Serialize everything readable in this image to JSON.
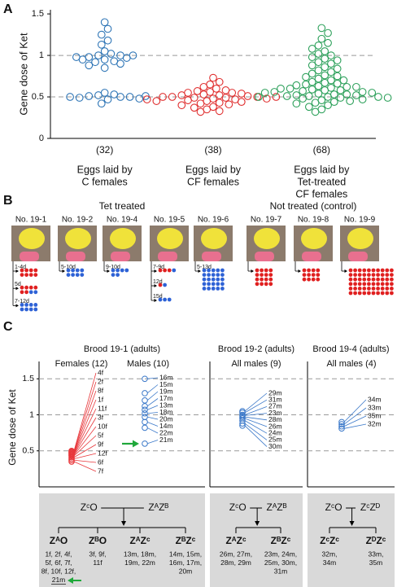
{
  "panel_labels": [
    "A",
    "B",
    "C"
  ],
  "chart_data": [
    {
      "type": "strip",
      "ylabel": "Gene dose of Ket",
      "ylim": [
        0,
        1.55
      ],
      "yticks": [
        0,
        0.5,
        1,
        1.5
      ],
      "dashed_lines": [
        0.5,
        1
      ],
      "categories": [
        [
          "Eggs laid by",
          "C females"
        ],
        [
          "Eggs laid by",
          "CF females"
        ],
        [
          "Eggs laid by",
          "Tet-treated",
          "CF females"
        ]
      ],
      "counts": [
        "(32)",
        "(38)",
        "(68)"
      ],
      "series": [
        {
          "color": "#2e75b6",
          "values": [
            1.4,
            1.32,
            1.25,
            1.18,
            1.13,
            1.05,
            1.02,
            1.0,
            1.0,
            0.98,
            0.97,
            0.95,
            0.93,
            0.92,
            0.9,
            0.88,
            0.85,
            0.95,
            0.98,
            1.0,
            0.55,
            0.53,
            0.52,
            0.51,
            0.5,
            0.5,
            0.49,
            0.48,
            0.47,
            0.5,
            0.51,
            0.42
          ]
        },
        {
          "color": "#e03030",
          "values": [
            0.73,
            0.68,
            0.65,
            0.62,
            0.6,
            0.58,
            0.57,
            0.56,
            0.55,
            0.55,
            0.54,
            0.53,
            0.52,
            0.52,
            0.51,
            0.5,
            0.5,
            0.5,
            0.49,
            0.49,
            0.48,
            0.48,
            0.47,
            0.46,
            0.45,
            0.45,
            0.44,
            0.43,
            0.42,
            0.41,
            0.4,
            0.38,
            0.37,
            0.35,
            0.33,
            0.32,
            0.5,
            0.47
          ]
        },
        {
          "color": "#2ca05a",
          "values": [
            1.33,
            1.27,
            1.2,
            1.15,
            1.12,
            1.08,
            1.05,
            1.02,
            1.0,
            0.98,
            0.96,
            0.94,
            0.92,
            0.9,
            0.88,
            0.86,
            0.84,
            0.82,
            0.8,
            0.78,
            0.76,
            0.75,
            0.74,
            0.72,
            0.7,
            0.7,
            0.68,
            0.67,
            0.66,
            0.65,
            0.64,
            0.63,
            0.62,
            0.62,
            0.61,
            0.6,
            0.6,
            0.59,
            0.58,
            0.58,
            0.57,
            0.56,
            0.56,
            0.55,
            0.55,
            0.54,
            0.53,
            0.53,
            0.52,
            0.52,
            0.51,
            0.51,
            0.5,
            0.5,
            0.5,
            0.49,
            0.49,
            0.48,
            0.47,
            0.46,
            0.45,
            0.44,
            0.43,
            0.42,
            0.4,
            0.38,
            0.35,
            0.32
          ]
        }
      ]
    },
    {
      "type": "labeled_strip",
      "title": "Brood 19-1 (adults)",
      "ylabel": "Gene dose of Ket",
      "ylim": [
        0,
        1.65
      ],
      "yticks": [
        0.5,
        1,
        1.5
      ],
      "dashed_lines": [
        0.5,
        1,
        1.5
      ],
      "series": [
        {
          "name": "Females (12)",
          "color": "#e8363a",
          "labels": [
            "4f",
            "2f",
            "8f",
            "1f",
            "11f",
            "3f",
            "10f",
            "5f",
            "9f",
            "12f",
            "6f",
            "7f"
          ],
          "values": [
            0.5,
            0.49,
            0.48,
            0.47,
            0.46,
            0.45,
            0.44,
            0.43,
            0.41,
            0.39,
            0.37,
            0.35
          ]
        },
        {
          "name": "Males (10)",
          "color": "#3a78c9",
          "labels": [
            "16m",
            "15m",
            "19m",
            "17m",
            "13m",
            "18m",
            "20m",
            "14m",
            "22m",
            "21m"
          ],
          "values": [
            1.5,
            1.3,
            1.2,
            1.12,
            1.07,
            1.02,
            0.97,
            0.9,
            0.82,
            0.6
          ]
        }
      ]
    },
    {
      "type": "labeled_strip",
      "title": "Brood 19-2 (adults)",
      "ylim": [
        0,
        1.65
      ],
      "dashed_lines": [
        0.5,
        1,
        1.5
      ],
      "series": [
        {
          "name": "All males (9)",
          "color": "#3a78c9",
          "labels": [
            "29m",
            "31m",
            "27m",
            "23m",
            "28m",
            "26m",
            "24m",
            "25m",
            "30m"
          ],
          "values": [
            1.05,
            1.03,
            1.0,
            0.99,
            0.97,
            0.95,
            0.92,
            0.88,
            0.85
          ]
        }
      ]
    },
    {
      "type": "labeled_strip",
      "title": "Brood 19-4 (adults)",
      "ylim": [
        0,
        1.65
      ],
      "dashed_lines": [
        0.5,
        1,
        1.5
      ],
      "series": [
        {
          "name": "All males (4)",
          "color": "#3a78c9",
          "labels": [
            "34m",
            "33m",
            "35m",
            "32m"
          ],
          "values": [
            0.9,
            0.87,
            0.84,
            0.81
          ]
        }
      ]
    }
  ],
  "panel_b": {
    "groups": [
      {
        "title": "Tet treated",
        "individuals": [
          {
            "name": "No. 19-1",
            "clutches": [
              {
                "label": "1-4d",
                "red": 8,
                "blue": 0
              },
              {
                "label": "5d",
                "red": 6,
                "blue": 2
              },
              {
                "label": "7-12d",
                "red": 0,
                "blue": 8
              }
            ]
          },
          {
            "name": "No. 19-2",
            "clutches": [
              {
                "label": "5-10d",
                "red": 0,
                "blue": 8
              }
            ]
          },
          {
            "name": "No. 19-4",
            "clutches": [
              {
                "label": "9-10d",
                "red": 0,
                "blue": 6
              }
            ]
          },
          {
            "name": "No. 19-5",
            "clutches": [
              {
                "label": "7-9d",
                "red": 3,
                "blue": 1
              },
              {
                "label": "12d",
                "red": 1,
                "blue": 1
              },
              {
                "label": "15d",
                "red": 0,
                "blue": 3
              }
            ]
          },
          {
            "name": "No. 19-6",
            "clutches": [
              {
                "label": "5-13d",
                "red": 0,
                "blue": 25
              }
            ]
          }
        ]
      },
      {
        "title": "Not treated (control)",
        "individuals": [
          {
            "name": "No. 19-7",
            "clutches": [
              {
                "label": null,
                "red": 16,
                "blue": 0
              }
            ]
          },
          {
            "name": "No. 19-8",
            "clutches": [
              {
                "label": null,
                "red": 12,
                "blue": 0
              }
            ]
          },
          {
            "name": "No. 19-9",
            "clutches": [
              {
                "label": null,
                "red": 60,
                "blue": 0
              }
            ]
          }
        ]
      }
    ]
  },
  "panel_c_crosses": [
    {
      "female": "ZᶜO",
      "male": "ZᴬZᴮ",
      "offspring": [
        {
          "genotype": "ZᴬO",
          "color": "#e02a2a",
          "members": [
            "1f, 2f, 4f,",
            "5f, 6f, 7f,",
            "8f, 10f, 12f,",
            "21m"
          ]
        },
        {
          "genotype": "ZᴮO",
          "color": "#e02a2a",
          "members": [
            "3f, 9f,",
            "11f"
          ]
        },
        {
          "genotype": "ZᴬZᶜ",
          "color": "#2e6fd0",
          "members": [
            "13m, 18m,",
            "19m, 22m"
          ]
        },
        {
          "genotype": "ZᴮZᶜ",
          "color": "#2e6fd0",
          "members": [
            "14m, 15m,",
            "16m, 17m,",
            "20m"
          ]
        }
      ]
    },
    {
      "female": "ZᶜO",
      "male": "ZᴬZᴮ",
      "offspring": [
        {
          "genotype": "ZᴬZᶜ",
          "color": "#2e6fd0",
          "members": [
            "26m, 27m,",
            "28m, 29m"
          ]
        },
        {
          "genotype": "ZᴮZᶜ",
          "color": "#2e6fd0",
          "members": [
            "23m, 24m,",
            "25m, 30m,",
            "31m"
          ]
        }
      ]
    },
    {
      "female": "ZᶜO",
      "male": "ZᶜZᴰ",
      "offspring": [
        {
          "genotype": "ZᶜZᶜ",
          "color": "#2e6fd0",
          "members": [
            "32m,",
            "34m"
          ]
        },
        {
          "genotype": "ZᴰZᶜ",
          "color": "#2e6fd0",
          "members": [
            "33m,",
            "35m"
          ]
        }
      ]
    }
  ]
}
